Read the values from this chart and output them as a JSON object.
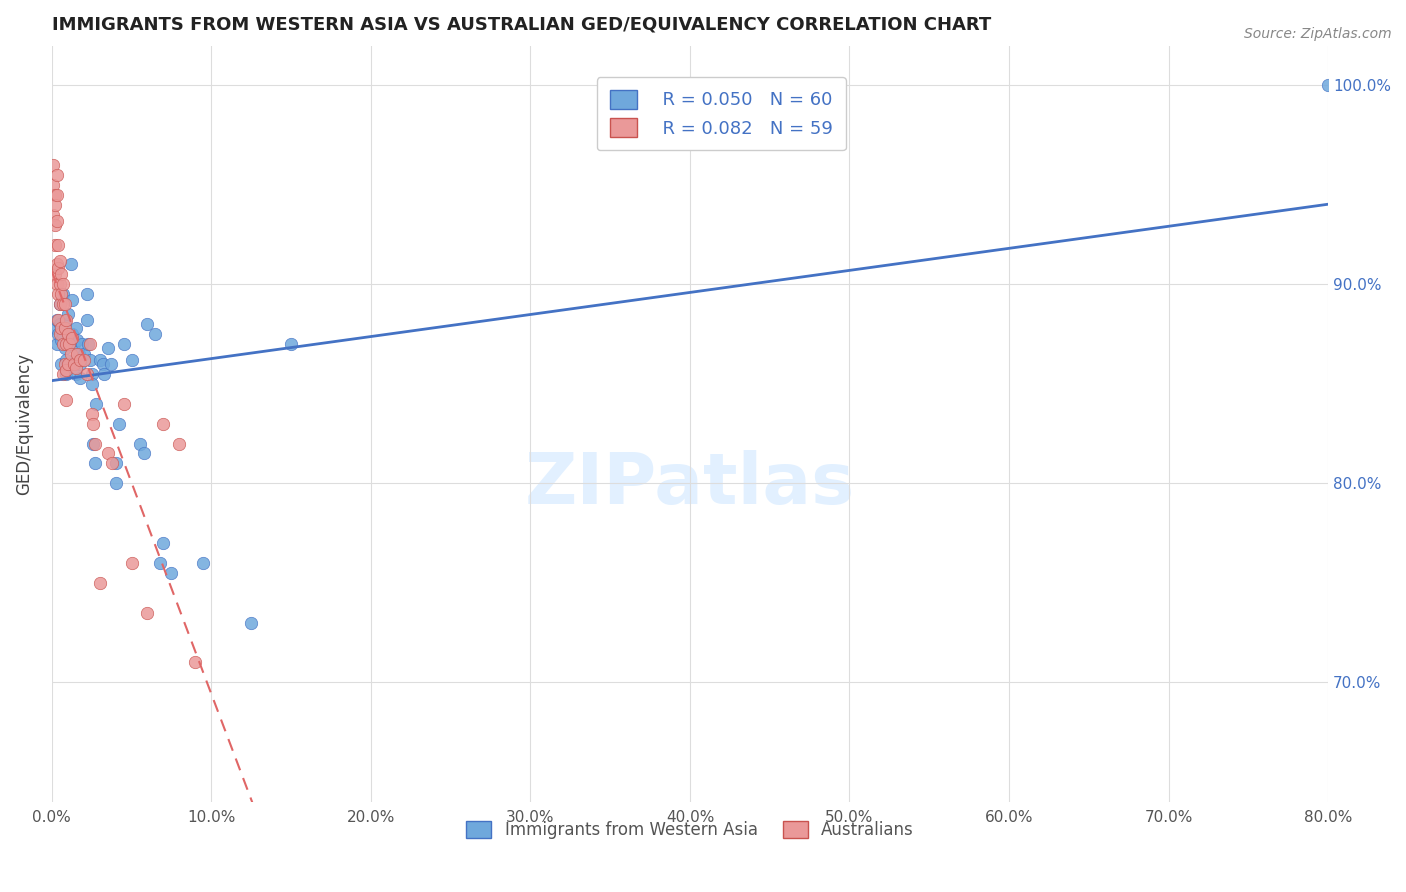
{
  "title": "IMMIGRANTS FROM WESTERN ASIA VS AUSTRALIAN GED/EQUIVALENCY CORRELATION CHART",
  "source": "Source: ZipAtlas.com",
  "ylabel": "GED/Equivalency",
  "legend_blue_r": "R = 0.050",
  "legend_blue_n": "N = 60",
  "legend_pink_r": "R = 0.082",
  "legend_pink_n": "N = 59",
  "watermark": "ZIPatlas",
  "blue_color": "#6fa8dc",
  "pink_color": "#ea9999",
  "blue_line_color": "#4472c4",
  "pink_line_color": "#e06666",
  "blue_scatter": [
    [
      0.002,
      0.878
    ],
    [
      0.003,
      0.882
    ],
    [
      0.003,
      0.87
    ],
    [
      0.004,
      0.875
    ],
    [
      0.005,
      0.89
    ],
    [
      0.005,
      0.88
    ],
    [
      0.006,
      0.872
    ],
    [
      0.006,
      0.86
    ],
    [
      0.007,
      0.895
    ],
    [
      0.007,
      0.875
    ],
    [
      0.008,
      0.88
    ],
    [
      0.008,
      0.868
    ],
    [
      0.009,
      0.862
    ],
    [
      0.009,
      0.855
    ],
    [
      0.01,
      0.885
    ],
    [
      0.01,
      0.87
    ],
    [
      0.011,
      0.86
    ],
    [
      0.012,
      0.91
    ],
    [
      0.013,
      0.892
    ],
    [
      0.013,
      0.875
    ],
    [
      0.014,
      0.87
    ],
    [
      0.014,
      0.86
    ],
    [
      0.015,
      0.855
    ],
    [
      0.015,
      0.878
    ],
    [
      0.016,
      0.872
    ],
    [
      0.017,
      0.865
    ],
    [
      0.018,
      0.86
    ],
    [
      0.018,
      0.853
    ],
    [
      0.019,
      0.87
    ],
    [
      0.02,
      0.865
    ],
    [
      0.022,
      0.895
    ],
    [
      0.022,
      0.882
    ],
    [
      0.023,
      0.87
    ],
    [
      0.024,
      0.862
    ],
    [
      0.025,
      0.855
    ],
    [
      0.025,
      0.85
    ],
    [
      0.026,
      0.82
    ],
    [
      0.027,
      0.81
    ],
    [
      0.028,
      0.84
    ],
    [
      0.03,
      0.862
    ],
    [
      0.032,
      0.86
    ],
    [
      0.033,
      0.855
    ],
    [
      0.035,
      0.868
    ],
    [
      0.037,
      0.86
    ],
    [
      0.04,
      0.81
    ],
    [
      0.04,
      0.8
    ],
    [
      0.042,
      0.83
    ],
    [
      0.045,
      0.87
    ],
    [
      0.05,
      0.862
    ],
    [
      0.055,
      0.82
    ],
    [
      0.058,
      0.815
    ],
    [
      0.06,
      0.88
    ],
    [
      0.065,
      0.875
    ],
    [
      0.068,
      0.76
    ],
    [
      0.07,
      0.77
    ],
    [
      0.075,
      0.755
    ],
    [
      0.095,
      0.76
    ],
    [
      0.125,
      0.73
    ],
    [
      0.15,
      0.87
    ],
    [
      0.8,
      1.0
    ]
  ],
  "pink_scatter": [
    [
      0.001,
      0.95
    ],
    [
      0.001,
      0.935
    ],
    [
      0.001,
      0.96
    ],
    [
      0.002,
      0.945
    ],
    [
      0.002,
      0.94
    ],
    [
      0.002,
      0.93
    ],
    [
      0.002,
      0.92
    ],
    [
      0.002,
      0.905
    ],
    [
      0.003,
      0.955
    ],
    [
      0.003,
      0.945
    ],
    [
      0.003,
      0.932
    ],
    [
      0.003,
      0.91
    ],
    [
      0.003,
      0.9
    ],
    [
      0.004,
      0.92
    ],
    [
      0.004,
      0.908
    ],
    [
      0.004,
      0.895
    ],
    [
      0.004,
      0.882
    ],
    [
      0.005,
      0.912
    ],
    [
      0.005,
      0.9
    ],
    [
      0.005,
      0.89
    ],
    [
      0.005,
      0.875
    ],
    [
      0.006,
      0.905
    ],
    [
      0.006,
      0.895
    ],
    [
      0.006,
      0.878
    ],
    [
      0.007,
      0.9
    ],
    [
      0.007,
      0.89
    ],
    [
      0.007,
      0.87
    ],
    [
      0.007,
      0.855
    ],
    [
      0.008,
      0.89
    ],
    [
      0.008,
      0.878
    ],
    [
      0.008,
      0.86
    ],
    [
      0.009,
      0.882
    ],
    [
      0.009,
      0.87
    ],
    [
      0.009,
      0.857
    ],
    [
      0.009,
      0.842
    ],
    [
      0.01,
      0.875
    ],
    [
      0.01,
      0.86
    ],
    [
      0.011,
      0.87
    ],
    [
      0.012,
      0.865
    ],
    [
      0.013,
      0.873
    ],
    [
      0.014,
      0.86
    ],
    [
      0.015,
      0.858
    ],
    [
      0.016,
      0.865
    ],
    [
      0.018,
      0.862
    ],
    [
      0.02,
      0.862
    ],
    [
      0.022,
      0.855
    ],
    [
      0.024,
      0.87
    ],
    [
      0.025,
      0.835
    ],
    [
      0.026,
      0.83
    ],
    [
      0.027,
      0.82
    ],
    [
      0.03,
      0.75
    ],
    [
      0.035,
      0.815
    ],
    [
      0.038,
      0.81
    ],
    [
      0.045,
      0.84
    ],
    [
      0.05,
      0.76
    ],
    [
      0.06,
      0.735
    ],
    [
      0.07,
      0.83
    ],
    [
      0.08,
      0.82
    ],
    [
      0.09,
      0.71
    ]
  ],
  "xlim": [
    0.0,
    0.8
  ],
  "ylim": [
    0.64,
    1.02
  ],
  "ytick_vals": [
    0.7,
    0.8,
    0.9,
    1.0
  ],
  "xtick_vals": [
    0.0,
    0.1,
    0.2,
    0.3,
    0.4,
    0.5,
    0.6,
    0.7,
    0.8
  ]
}
